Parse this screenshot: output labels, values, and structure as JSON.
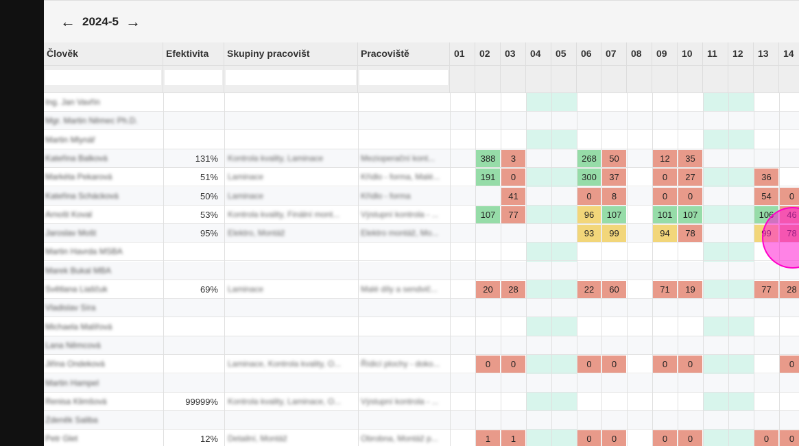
{
  "toolbar": {
    "prev_icon": "arrow-left-icon",
    "next_icon": "arrow-right-icon",
    "period": "2024-5",
    "prev_glyph": "←",
    "next_glyph": "→"
  },
  "columns": {
    "person": "Člověk",
    "efficiency": "Efektivita",
    "groups": "Skupiny pracovišt",
    "workstation": "Pracoviště"
  },
  "days": [
    "01",
    "02",
    "03",
    "04",
    "05",
    "06",
    "07",
    "08",
    "09",
    "10",
    "11",
    "12",
    "13",
    "14"
  ],
  "rows": [
    {
      "name": "Ing. Jan Vavřín",
      "eff": "",
      "groups": "",
      "ws": "",
      "values": {}
    },
    {
      "name": "Mgr. Martin Němec Ph.D.",
      "eff": "",
      "groups": "",
      "ws": "",
      "values": {}
    },
    {
      "name": "Martin Mlynář",
      "eff": "",
      "groups": "",
      "ws": "",
      "values": {}
    },
    {
      "name": "Kateřina Balková",
      "eff": "131%",
      "groups": "Kontrola kvality, Laminace",
      "ws": "Mezioperační kont...",
      "values": {
        "02": [
          "388",
          "g"
        ],
        "03": [
          "3",
          "r"
        ],
        "06": [
          "268",
          "g"
        ],
        "07": [
          "50",
          "r"
        ],
        "09": [
          "12",
          "r"
        ],
        "10": [
          "35",
          "r"
        ]
      }
    },
    {
      "name": "Markéta Pekarová",
      "eff": "51%",
      "groups": "Laminace",
      "ws": "Křídlo - forma, Malé...",
      "values": {
        "02": [
          "191",
          "g"
        ],
        "03": [
          "0",
          "r"
        ],
        "06": [
          "300",
          "g"
        ],
        "07": [
          "37",
          "r"
        ],
        "09": [
          "0",
          "r"
        ],
        "10": [
          "27",
          "r"
        ],
        "13": [
          "36",
          "r"
        ]
      }
    },
    {
      "name": "Kateřina Schácková",
      "eff": "50%",
      "groups": "Laminace",
      "ws": "Křídlo - forma",
      "values": {
        "03": [
          "41",
          "r"
        ],
        "06": [
          "0",
          "r"
        ],
        "07": [
          "8",
          "r"
        ],
        "09": [
          "0",
          "r"
        ],
        "10": [
          "0",
          "r"
        ],
        "13": [
          "54",
          "r"
        ],
        "14": [
          "0",
          "r"
        ]
      }
    },
    {
      "name": "Arnošt Koval",
      "eff": "53%",
      "groups": "Kontrola kvality, Finální mont...",
      "ws": "Výstupní kontrola - ...",
      "values": {
        "02": [
          "107",
          "g"
        ],
        "03": [
          "77",
          "r"
        ],
        "06": [
          "96",
          "y"
        ],
        "07": [
          "107",
          "g"
        ],
        "09": [
          "101",
          "g"
        ],
        "10": [
          "107",
          "g"
        ],
        "13": [
          "106",
          "g"
        ],
        "14": [
          "46",
          "r"
        ]
      }
    },
    {
      "name": "Jaroslav Mošt",
      "eff": "95%",
      "groups": "Elektro, Montáž",
      "ws": "Elektro montáž, Mo...",
      "values": {
        "06": [
          "93",
          "y"
        ],
        "07": [
          "99",
          "y"
        ],
        "09": [
          "94",
          "y"
        ],
        "10": [
          "78",
          "r"
        ],
        "13": [
          "99",
          "y"
        ],
        "14": [
          "78",
          "r"
        ]
      }
    },
    {
      "name": "Martin Havrda MSBA",
      "eff": "",
      "groups": "",
      "ws": "",
      "values": {}
    },
    {
      "name": "Marek Bukal MBA",
      "eff": "",
      "groups": "",
      "ws": "",
      "values": {}
    },
    {
      "name": "Světlana Liaščuk",
      "eff": "69%",
      "groups": "Laminace",
      "ws": "Malé díly a sendvič...",
      "values": {
        "02": [
          "20",
          "r"
        ],
        "03": [
          "28",
          "r"
        ],
        "06": [
          "22",
          "r"
        ],
        "07": [
          "60",
          "r"
        ],
        "09": [
          "71",
          "r"
        ],
        "10": [
          "19",
          "r"
        ],
        "13": [
          "77",
          "r"
        ],
        "14": [
          "28",
          "r"
        ]
      }
    },
    {
      "name": "Vladislav Síra",
      "eff": "",
      "groups": "",
      "ws": "",
      "values": {}
    },
    {
      "name": "Michaela Malířová",
      "eff": "",
      "groups": "",
      "ws": "",
      "values": {}
    },
    {
      "name": "Lana Němcová",
      "eff": "",
      "groups": "",
      "ws": "",
      "values": {}
    },
    {
      "name": "Jiřina Ondeková",
      "eff": "",
      "groups": "Laminace, Kontrola kvality, O...",
      "ws": "Řídicí plochy - doko...",
      "values": {
        "02": [
          "0",
          "r"
        ],
        "03": [
          "0",
          "r"
        ],
        "06": [
          "0",
          "r"
        ],
        "07": [
          "0",
          "r"
        ],
        "09": [
          "0",
          "r"
        ],
        "10": [
          "0",
          "r"
        ],
        "14": [
          "0",
          "r"
        ]
      }
    },
    {
      "name": "Martin Hampel",
      "eff": "",
      "groups": "",
      "ws": "",
      "values": {}
    },
    {
      "name": "Renisa Klimšová",
      "eff": "99999%",
      "groups": "Kontrola kvality, Laminace, O...",
      "ws": "Výstupní kontrola - ...",
      "values": {}
    },
    {
      "name": "Zdeněk Saliba",
      "eff": "",
      "groups": "",
      "ws": "",
      "values": {}
    },
    {
      "name": "Petr Glet",
      "eff": "12%",
      "groups": "Detailní, Montáž",
      "ws": "Obrobna, Montáž p...",
      "values": {
        "02": [
          "1",
          "r"
        ],
        "03": [
          "1",
          "r"
        ],
        "06": [
          "0",
          "r"
        ],
        "07": [
          "0",
          "r"
        ],
        "09": [
          "0",
          "r"
        ],
        "10": [
          "0",
          "r"
        ],
        "13": [
          "0",
          "r"
        ],
        "14": [
          "0",
          "r"
        ]
      }
    }
  ]
}
